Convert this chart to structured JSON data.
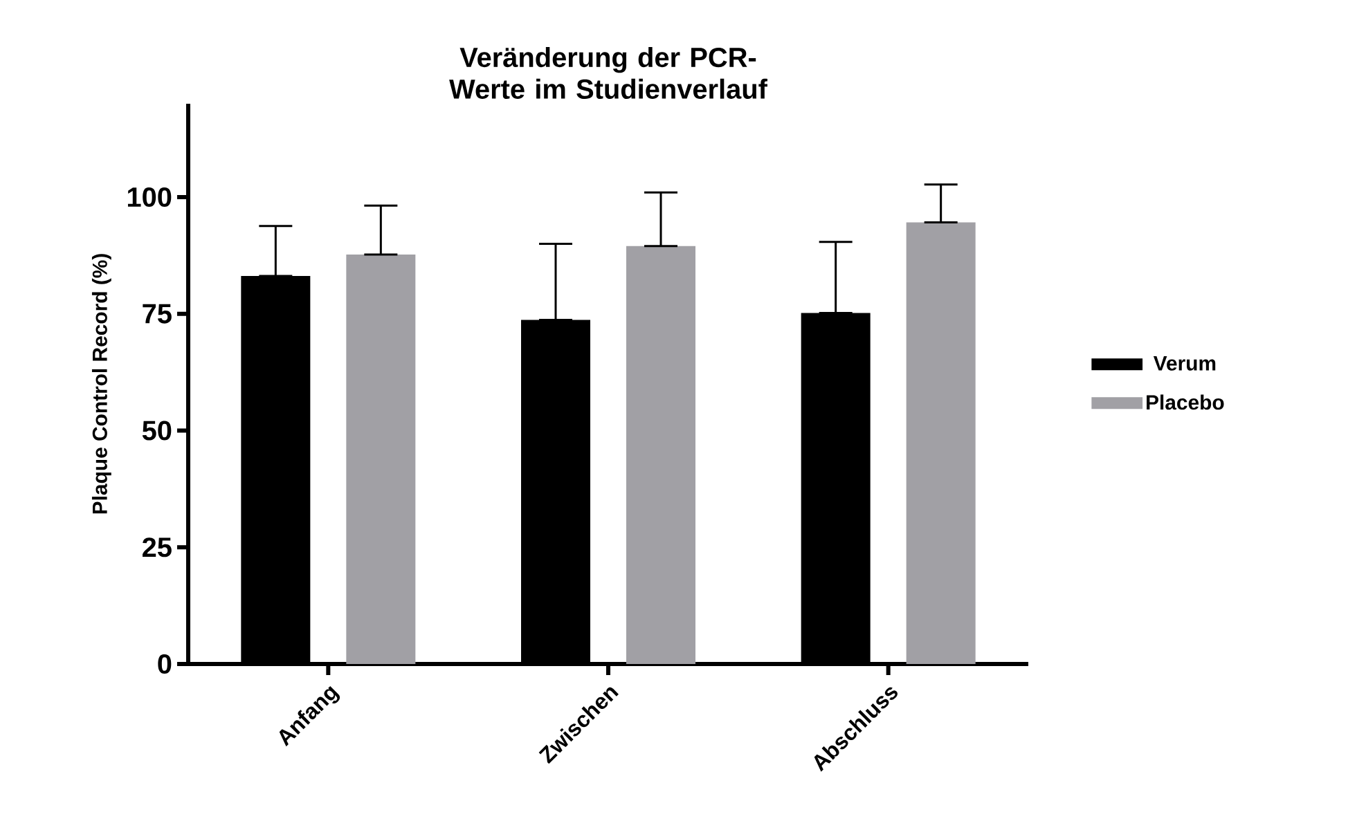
{
  "chart_data": {
    "type": "bar",
    "title": "Veränderung der PCR-Werte im Studienverlauf",
    "ylabel": "Plaque Control Record (%)",
    "categories": [
      "Anfang",
      "Zwischen",
      "Abschluss"
    ],
    "series": [
      {
        "name": "Verum",
        "color": "#000000",
        "values": [
          83.1,
          73.7,
          75.2
        ],
        "errors": [
          [
            83.1,
            93.8
          ],
          [
            73.7,
            90.0
          ],
          [
            75.2,
            90.4
          ]
        ]
      },
      {
        "name": "Placebo",
        "color": "#a1a0a5",
        "values": [
          87.7,
          89.5,
          94.6
        ],
        "errors": [
          [
            87.7,
            98.2
          ],
          [
            89.5,
            101.0
          ],
          [
            94.6,
            102.7
          ]
        ]
      }
    ],
    "ylim": [
      0,
      120
    ],
    "yticks": [
      0,
      25,
      50,
      75,
      100
    ],
    "grid": false,
    "legend": "right"
  }
}
